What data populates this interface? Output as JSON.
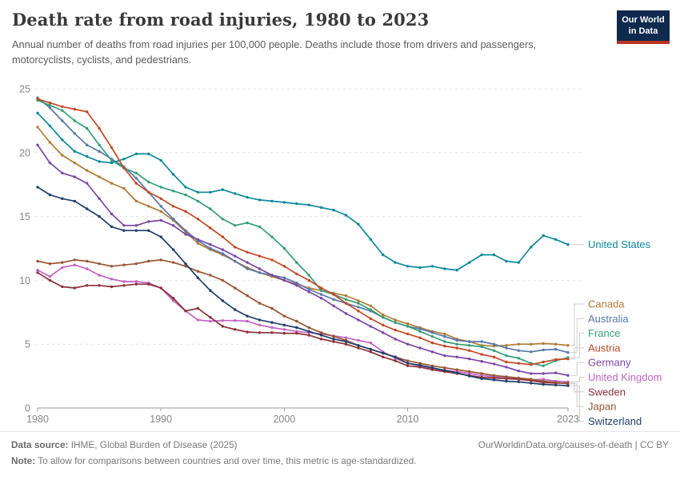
{
  "header": {
    "title": "Death rate from road injuries, 1980 to 2023",
    "subtitle": "Annual number of deaths from road injuries per 100,000 people. Deaths include those from drivers and passengers, motorcyclists, cyclists, and pedestrians.",
    "logo_line1": "Our World",
    "logo_line2": "in Data"
  },
  "chart_data": {
    "type": "line",
    "title": "Death rate from road injuries, 1980 to 2023",
    "xlabel": "",
    "ylabel": "",
    "grid": true,
    "legend_position": "right",
    "xlim": [
      1980,
      2023
    ],
    "ylim": [
      0,
      25
    ],
    "x_ticks": [
      1980,
      1990,
      2000,
      2010,
      2023
    ],
    "y_ticks": [
      0,
      5,
      10,
      15,
      20,
      25
    ],
    "x": [
      1980,
      1981,
      1982,
      1983,
      1984,
      1985,
      1986,
      1987,
      1988,
      1989,
      1990,
      1991,
      1992,
      1993,
      1994,
      1995,
      1996,
      1997,
      1998,
      1999,
      2000,
      2001,
      2002,
      2003,
      2004,
      2005,
      2006,
      2007,
      2008,
      2009,
      2010,
      2011,
      2012,
      2013,
      2014,
      2015,
      2016,
      2017,
      2018,
      2019,
      2020,
      2021,
      2022,
      2023
    ],
    "series": [
      {
        "name": "United States",
        "color": "#0d8a9c",
        "values": [
          23.1,
          22.1,
          21.0,
          20.1,
          19.7,
          19.3,
          19.2,
          19.5,
          19.9,
          19.9,
          19.4,
          18.3,
          17.3,
          16.9,
          16.9,
          17.1,
          16.8,
          16.5,
          16.3,
          16.2,
          16.1,
          16.0,
          15.9,
          15.7,
          15.5,
          15.1,
          14.4,
          13.2,
          12.0,
          11.4,
          11.1,
          11.0,
          11.1,
          10.9,
          10.8,
          11.4,
          12.0,
          12.0,
          11.5,
          11.4,
          12.6,
          13.5,
          13.2,
          12.8
        ]
      },
      {
        "name": "Canada",
        "color": "#ae7c34",
        "values": [
          22.0,
          20.8,
          19.8,
          19.2,
          18.6,
          18.1,
          17.6,
          17.2,
          16.2,
          15.8,
          15.4,
          14.7,
          13.8,
          12.9,
          12.4,
          12.0,
          11.5,
          11.0,
          10.6,
          10.3,
          10.0,
          9.7,
          9.4,
          9.2,
          9.0,
          8.8,
          8.4,
          8.0,
          7.3,
          6.9,
          6.6,
          6.3,
          6.0,
          5.8,
          5.4,
          5.2,
          4.9,
          4.85,
          4.9,
          5.0,
          5.0,
          5.05,
          5.0,
          4.9
        ]
      },
      {
        "name": "Australia",
        "color": "#5878ab",
        "values": [
          24.3,
          23.5,
          22.5,
          21.5,
          20.6,
          20.1,
          19.5,
          18.9,
          18.0,
          16.9,
          15.8,
          14.8,
          13.9,
          13.1,
          12.5,
          12.1,
          11.5,
          10.9,
          10.6,
          10.4,
          10.2,
          9.8,
          9.3,
          8.9,
          8.5,
          8.2,
          7.9,
          7.6,
          7.1,
          6.7,
          6.4,
          6.2,
          5.9,
          5.6,
          5.3,
          5.2,
          5.2,
          5.0,
          4.7,
          4.5,
          4.4,
          4.55,
          4.6,
          4.35
        ]
      },
      {
        "name": "France",
        "color": "#339e77",
        "values": [
          24.1,
          23.7,
          23.3,
          22.5,
          21.9,
          20.6,
          19.4,
          18.8,
          18.4,
          17.7,
          17.3,
          17.0,
          16.7,
          16.2,
          15.6,
          14.8,
          14.3,
          14.5,
          14.2,
          13.4,
          12.5,
          11.4,
          10.4,
          9.2,
          8.9,
          8.5,
          8.2,
          7.7,
          7.1,
          6.7,
          6.4,
          6.0,
          5.6,
          5.2,
          5.0,
          4.9,
          4.8,
          4.5,
          4.1,
          3.9,
          3.5,
          3.3,
          3.7,
          3.95
        ]
      },
      {
        "name": "Austria",
        "color": "#c14a26",
        "values": [
          24.2,
          23.9,
          23.6,
          23.4,
          23.2,
          21.9,
          20.4,
          18.8,
          17.6,
          16.9,
          16.4,
          15.8,
          15.4,
          14.8,
          14.1,
          13.4,
          12.6,
          12.2,
          11.9,
          11.6,
          11.1,
          10.5,
          10.0,
          9.4,
          8.9,
          8.2,
          7.6,
          7.0,
          6.5,
          6.1,
          5.8,
          5.5,
          5.1,
          4.85,
          4.7,
          4.5,
          4.2,
          4.0,
          3.6,
          3.5,
          3.4,
          3.6,
          3.8,
          3.85
        ]
      },
      {
        "name": "Germany",
        "color": "#7c45a8",
        "values": [
          20.6,
          19.2,
          18.4,
          18.1,
          17.6,
          16.4,
          15.2,
          14.3,
          14.3,
          14.6,
          14.7,
          14.3,
          13.6,
          13.2,
          12.8,
          12.4,
          11.9,
          11.4,
          10.9,
          10.4,
          10.0,
          9.6,
          9.1,
          8.6,
          8.0,
          7.4,
          6.9,
          6.4,
          5.9,
          5.4,
          5.0,
          4.7,
          4.4,
          4.1,
          4.0,
          3.85,
          3.65,
          3.45,
          3.2,
          2.9,
          2.7,
          2.7,
          2.75,
          2.55
        ]
      },
      {
        "name": "United Kingdom",
        "color": "#c263c6",
        "values": [
          10.8,
          10.3,
          11.0,
          11.2,
          10.9,
          10.4,
          10.1,
          9.9,
          9.9,
          9.8,
          9.4,
          8.4,
          7.6,
          6.9,
          6.8,
          6.85,
          6.85,
          6.8,
          6.5,
          6.3,
          6.15,
          6.0,
          5.9,
          5.8,
          5.65,
          5.5,
          5.3,
          5.1,
          4.4,
          3.9,
          3.5,
          3.3,
          3.1,
          2.95,
          2.85,
          2.7,
          2.55,
          2.45,
          2.4,
          2.35,
          2.2,
          2.25,
          2.1,
          2.05
        ]
      },
      {
        "name": "Sweden",
        "color": "#8d3039",
        "values": [
          10.6,
          10.0,
          9.5,
          9.4,
          9.6,
          9.6,
          9.5,
          9.6,
          9.7,
          9.7,
          9.4,
          8.6,
          7.6,
          7.8,
          7.1,
          6.4,
          6.15,
          5.95,
          5.9,
          5.9,
          5.85,
          5.85,
          5.7,
          5.4,
          5.2,
          5.0,
          4.7,
          4.4,
          4.0,
          3.7,
          3.3,
          3.2,
          3.0,
          2.85,
          2.7,
          2.55,
          2.4,
          2.35,
          2.3,
          2.25,
          2.15,
          2.0,
          1.95,
          1.95
        ]
      },
      {
        "name": "Japan",
        "color": "#9a5531",
        "values": [
          11.5,
          11.3,
          11.4,
          11.6,
          11.5,
          11.3,
          11.1,
          11.2,
          11.3,
          11.5,
          11.6,
          11.4,
          11.1,
          10.7,
          10.4,
          10.0,
          9.4,
          8.8,
          8.2,
          7.8,
          7.2,
          6.8,
          6.3,
          5.9,
          5.6,
          5.3,
          4.9,
          4.6,
          4.3,
          4.0,
          3.7,
          3.5,
          3.3,
          3.15,
          3.0,
          2.85,
          2.7,
          2.55,
          2.45,
          2.35,
          2.25,
          2.1,
          2.0,
          1.9
        ]
      },
      {
        "name": "Switzerland",
        "color": "#20406b",
        "values": [
          17.3,
          16.7,
          16.4,
          16.2,
          15.6,
          15.0,
          14.2,
          13.9,
          13.9,
          13.9,
          13.4,
          12.4,
          11.3,
          10.2,
          9.2,
          8.4,
          7.7,
          7.2,
          6.9,
          6.7,
          6.5,
          6.3,
          6.0,
          5.7,
          5.4,
          5.2,
          4.9,
          4.6,
          4.3,
          4.0,
          3.5,
          3.35,
          3.15,
          2.95,
          2.75,
          2.5,
          2.3,
          2.2,
          2.1,
          2.05,
          1.95,
          1.85,
          1.8,
          1.75
        ]
      }
    ]
  },
  "footer": {
    "source_label": "Data source:",
    "source_text": " IHME, Global Burden of Disease (2025)",
    "link_text": "OurWorldinData.org/causes-of-death | CC BY",
    "note_label": "Note:",
    "note_text": " To allow for comparisons between countries and over time, this metric is age-standardized."
  }
}
